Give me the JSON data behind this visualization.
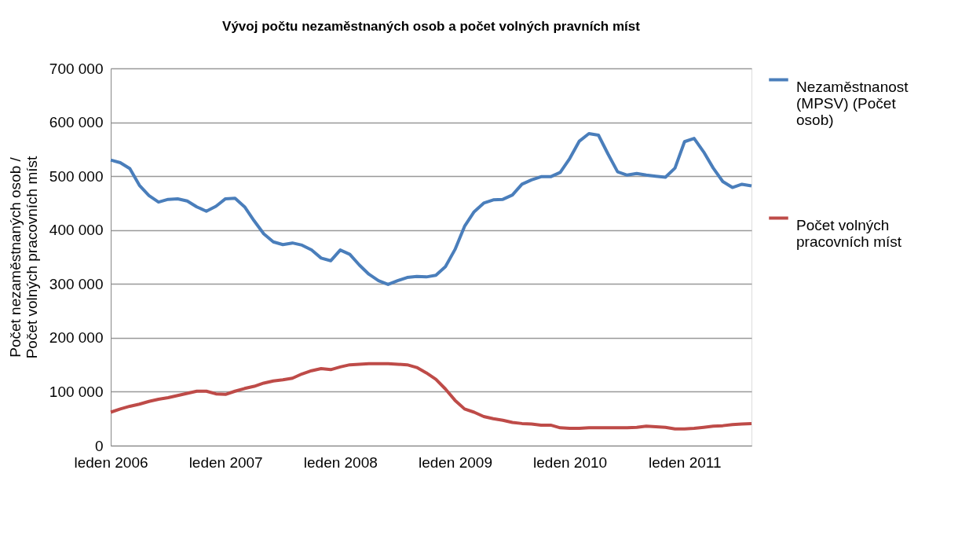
{
  "chart_data": {
    "type": "line",
    "title": "Vývoj počtu nezaměstnaných osob a počet volných pravních míst",
    "ylabel": "Počet nezaměstnaných osob / Počet volných pracovních míst",
    "categories": [
      "leden 2006",
      null,
      null,
      null,
      null,
      null,
      null,
      null,
      null,
      null,
      null,
      null,
      "leden 2007",
      null,
      null,
      null,
      null,
      null,
      null,
      null,
      null,
      null,
      null,
      null,
      "leden 2008",
      null,
      null,
      null,
      null,
      null,
      null,
      null,
      null,
      null,
      null,
      null,
      "leden 2009",
      null,
      null,
      null,
      null,
      null,
      null,
      null,
      null,
      null,
      null,
      null,
      "leden 2010",
      null,
      null,
      null,
      null,
      null,
      null,
      null,
      null,
      null,
      null,
      null,
      "leden 2011",
      null,
      null,
      null,
      null,
      null,
      null,
      null
    ],
    "series": [
      {
        "name": "Nezaměstnanost (MPSV) (Počet osob)",
        "color": "#4a7ebb",
        "values": [
          530000,
          525000,
          514000,
          483000,
          464000,
          452000,
          457000,
          458000,
          454000,
          443000,
          435000,
          444000,
          458000,
          459000,
          443000,
          417000,
          393000,
          378000,
          373000,
          376000,
          372000,
          363000,
          348000,
          343000,
          363000,
          355000,
          335000,
          318000,
          306000,
          299000,
          306000,
          312000,
          314000,
          313000,
          316000,
          332000,
          364000,
          407000,
          434000,
          450000,
          456000,
          457000,
          465000,
          485000,
          493000,
          499000,
          499000,
          507000,
          533000,
          565000,
          579000,
          576000,
          541000,
          508000,
          502000,
          505000,
          502000,
          500000,
          498000,
          515000,
          564000,
          570000,
          545000,
          515000,
          490000,
          479000,
          485000,
          482000
        ]
      },
      {
        "name": "Počet volných pracovních míst",
        "color": "#be4b48",
        "values": [
          62000,
          68000,
          73000,
          77000,
          82000,
          86000,
          89000,
          93000,
          97000,
          101000,
          101000,
          96000,
          95000,
          101000,
          106000,
          110000,
          116000,
          120000,
          122000,
          125000,
          133000,
          139000,
          143000,
          141000,
          146000,
          150000,
          151000,
          152000,
          152000,
          152000,
          151000,
          150000,
          145000,
          135000,
          123000,
          105000,
          84000,
          68000,
          62000,
          54000,
          50000,
          47000,
          43000,
          41000,
          40000,
          38000,
          38000,
          33000,
          32000,
          32000,
          33000,
          33000,
          33000,
          33000,
          33000,
          34000,
          36000,
          35000,
          34000,
          31000,
          31000,
          32000,
          34000,
          36000,
          37000,
          39000,
          40000,
          41000
        ]
      }
    ],
    "ylim": [
      0,
      700000
    ],
    "yticks": [
      0,
      {
        "value": 100000,
        "label": "100 000"
      },
      {
        "value": 200000,
        "label": "200 000"
      },
      {
        "value": 300000,
        "label": "300 000"
      },
      {
        "value": 400000,
        "label": "400 000"
      },
      {
        "value": 500000,
        "label": "500 000"
      },
      {
        "value": 600000,
        "label": "600 000"
      },
      {
        "value": 700000,
        "label": "700 000"
      }
    ],
    "grid": "y",
    "legend": "right",
    "marker": "none",
    "line_style": "solid"
  }
}
